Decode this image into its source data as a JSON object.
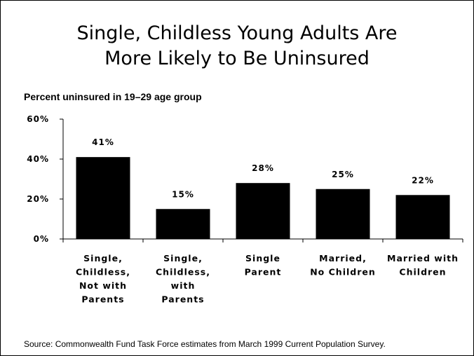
{
  "title_lines": [
    "Single, Childless Young Adults Are",
    "More Likely to Be Uninsured"
  ],
  "subtitle": "Percent uninsured in 19–29 age group",
  "source": "Source: Commonwealth Fund Task Force estimates from March 1999 Current Population Survey.",
  "colors": {
    "bar": "#000000",
    "background": "#ffffff",
    "text": "#000000"
  },
  "chart_data": {
    "type": "bar",
    "title": "Single, Childless Young Adults Are More Likely to Be Uninsured",
    "ylabel": "",
    "xlabel": "",
    "ylim": [
      0,
      60
    ],
    "yticks": [
      0,
      20,
      40,
      60
    ],
    "ytick_labels": [
      "0%",
      "20%",
      "40%",
      "60%"
    ],
    "grid": false,
    "legend": "none",
    "categories": [
      [
        "Single,",
        "Childless,",
        "Not with",
        "Parents"
      ],
      [
        "Single,",
        "Childless,",
        "with",
        "Parents"
      ],
      [
        "Single",
        "Parent"
      ],
      [
        "Married,",
        "No Children"
      ],
      [
        "Married with",
        "Children"
      ]
    ],
    "values": [
      41,
      15,
      28,
      25,
      22
    ],
    "value_labels": [
      "41%",
      "15%",
      "28%",
      "25%",
      "22%"
    ]
  }
}
